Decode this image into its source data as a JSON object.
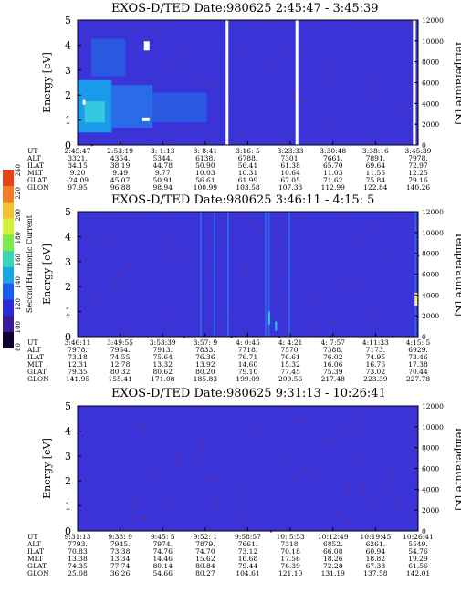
{
  "colorbar": {
    "label": "Second Harmonic Current",
    "ticks": [
      "240",
      "220",
      "200",
      "180",
      "160",
      "140",
      "120",
      "100",
      "80"
    ],
    "colors": [
      "#e8401a",
      "#f47c24",
      "#f5c22f",
      "#d4f03a",
      "#7ee84c",
      "#38d6b8",
      "#1aa4e8",
      "#1a5cf0",
      "#2a2ad8",
      "#3a1a9a",
      "#100030"
    ]
  },
  "panels": [
    {
      "title": "EXOS-D/TED   Date:980625  2:45:47 - 3:45:39",
      "ylabel_left": "Energy [eV]",
      "ylabel_right": "Temperature [K]",
      "yticks_left": [
        "0",
        "1",
        "2",
        "3",
        "4",
        "5"
      ],
      "yticks_right": [
        "0",
        "2000",
        "4000",
        "6000",
        "8000",
        "10000",
        "12000"
      ],
      "eph_labels": [
        "UT",
        "ALT",
        "ILAT",
        "MLT",
        "GLAT",
        "GLON"
      ],
      "eph_columns": [
        [
          "2:45:47",
          "3321.",
          "34.15",
          "9.20",
          "-24.09",
          "97.95"
        ],
        [
          "2:53:19",
          "4364.",
          "38.19",
          "9.49",
          "45.07",
          "96.88"
        ],
        [
          "3: 1:13",
          "5344.",
          "44.78",
          "9.77",
          "50.91",
          "98.94"
        ],
        [
          "3: 8:41",
          "6138.",
          "50.90",
          "10.03",
          "56.61",
          "100.99"
        ],
        [
          "3:16: 5",
          "6788.",
          "56.41",
          "10.31",
          "61.99",
          "103.58"
        ],
        [
          "3:23:33",
          "7301.",
          "61.38",
          "10.64",
          "67.05",
          "107.33"
        ],
        [
          "3:30:48",
          "7661.",
          "65.70",
          "11.03",
          "71.62",
          "112.99"
        ],
        [
          "3:38:16",
          "7891.",
          "69.64",
          "11.55",
          "75.84",
          "122.84"
        ],
        [
          "3:45:39",
          "7978.",
          "72.97",
          "12.25",
          "79.16",
          "140.26"
        ]
      ]
    },
    {
      "title": "EXOS-D/TED   Date:980625  3:46:11 - 4:15: 5",
      "ylabel_left": "Energy [eV]",
      "ylabel_right": "Temperature [K]",
      "yticks_left": [
        "0",
        "1",
        "2",
        "3",
        "4",
        "5"
      ],
      "yticks_right": [
        "0",
        "2000",
        "4000",
        "6000",
        "8000",
        "10000",
        "12000"
      ],
      "eph_labels": [
        "UT",
        "ALT",
        "ILAT",
        "MLT",
        "GLAT",
        "GLON"
      ],
      "eph_columns": [
        [
          "3:46:11",
          "7978.",
          "73.18",
          "12.31",
          "79.35",
          "141.95"
        ],
        [
          "3:49:55",
          "7964.",
          "74.55",
          "12.78",
          "80.32",
          "155.41"
        ],
        [
          "3:53:39",
          "7913.",
          "75.64",
          "13.32",
          "80.62",
          "171.08"
        ],
        [
          "3:57: 9",
          "7833.",
          "76.36",
          "13.92",
          "80.20",
          "185.83"
        ],
        [
          "4: 0:45",
          "7718.",
          "76.71",
          "14.60",
          "79.10",
          "199.09"
        ],
        [
          "4: 4:21",
          "7570.",
          "76.61",
          "15.32",
          "77.45",
          "209.56"
        ],
        [
          "4: 7:57",
          "7388.",
          "76.02",
          "16.06",
          "75.39",
          "217.48"
        ],
        [
          "4:11:33",
          "7173.",
          "74.95",
          "16.76",
          "73.02",
          "223.39"
        ],
        [
          "4:15: 5",
          "6929.",
          "73.46",
          "17.38",
          "70.44",
          "227.78"
        ]
      ]
    },
    {
      "title": "EXOS-D/TED   Date:980625  9:31:13 - 10:26:41",
      "ylabel_left": "Energy [eV]",
      "ylabel_right": "Temperature [K]",
      "yticks_left": [
        "0",
        "1",
        "2",
        "3",
        "4",
        "5"
      ],
      "yticks_right": [
        "0",
        "2000",
        "4000",
        "6000",
        "8000",
        "10000",
        "12000"
      ],
      "eph_labels": [
        "UT",
        "ALT",
        "ILAT",
        "MLT",
        "GLAT",
        "GLON"
      ],
      "eph_columns": [
        [
          "9:31:13",
          "7793.",
          "70.83",
          "13.38",
          "74.35",
          "25.08"
        ],
        [
          "9:38: 9",
          "7945.",
          "73.38",
          "13.34",
          "77.74",
          "36.26"
        ],
        [
          "9:45: 5",
          "7974.",
          "74.76",
          "14.46",
          "80.14",
          "54.66"
        ],
        [
          "9:52: 1",
          "7879.",
          "74.70",
          "15.62",
          "80.84",
          "80.27"
        ],
        [
          "9:58:57",
          "7661.",
          "73.12",
          "16.68",
          "79.44",
          "104.61"
        ],
        [
          "10: 5:53",
          "7318.",
          "70.18",
          "17.56",
          "76.39",
          "121.10"
        ],
        [
          "10:12:49",
          "6852.",
          "66.08",
          "18.26",
          "72.28",
          "131.19"
        ],
        [
          "10:19:45",
          "6261.",
          "60.94",
          "18.82",
          "67.33",
          "137.58"
        ],
        [
          "10:26:41",
          "5549.",
          "54.76",
          "19.29",
          "61.56",
          "142.01"
        ]
      ]
    }
  ],
  "chart_data": [
    {
      "type": "heatmap",
      "title": "EXOS-D/TED   Date:980625  2:45:47 - 3:45:39",
      "xlabel": "UT",
      "ylabel": "Energy [eV]",
      "ylabel_right": "Temperature [K]",
      "ylim": [
        0,
        5
      ],
      "ylim_right": [
        0,
        12000
      ],
      "background_color": "#3a34d8",
      "features": "enhanced emission near 0.5-2.5 eV between 2:45:47 and 3: 8:41; data gaps near 3:16 and 3:22; vertical gap near 3:45"
    },
    {
      "type": "heatmap",
      "title": "EXOS-D/TED   Date:980625  3:46:11 - 4:15: 5",
      "xlabel": "UT",
      "ylabel": "Energy [eV]",
      "ylabel_right": "Temperature [K]",
      "ylim": [
        0,
        5
      ],
      "ylim_right": [
        0,
        12000
      ],
      "background_color": "#3a34d8",
      "features": "vertical streaks near 3:59 - 4:05; isolated enhancements near 4:14 at 1-2 eV"
    },
    {
      "type": "heatmap",
      "title": "EXOS-D/TED   Date:980625  9:31:13 - 10:26:41",
      "xlabel": "UT",
      "ylabel": "Energy [eV]",
      "ylabel_right": "Temperature [K]",
      "ylim": [
        0,
        5
      ],
      "ylim_right": [
        0,
        12000
      ],
      "background_color": "#3a34d8",
      "features": "nearly uniform background"
    }
  ]
}
